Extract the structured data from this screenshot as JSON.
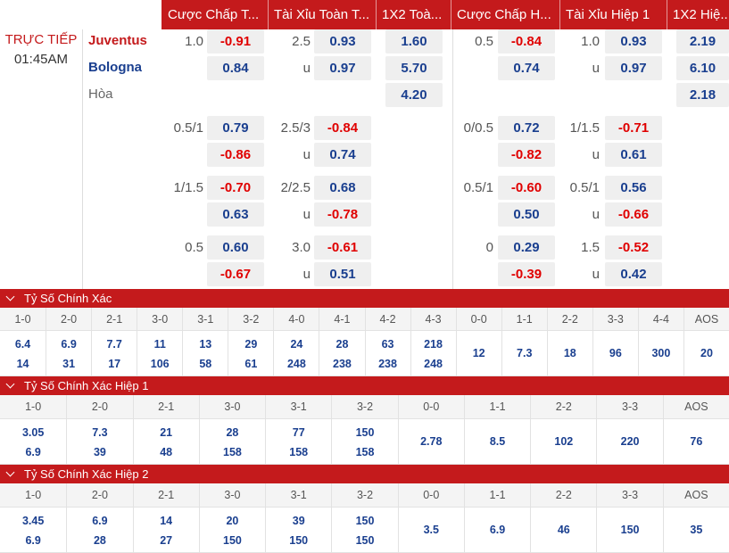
{
  "header": {
    "columns": [
      "Cược Chấp T...",
      "Tài Xỉu Toàn T...",
      "1X2 Toà...",
      "Cược Chấp H...",
      "Tài Xỉu Hiệp 1",
      "1X2 Hiệ..."
    ]
  },
  "match": {
    "status": "TRỰC TIẾP",
    "time": "01:45AM",
    "home": "Juventus",
    "away": "Bologna",
    "draw": "Hòa",
    "ou_under_label": "u",
    "main": {
      "ft_hdp": {
        "line": "1.0",
        "home": "-0.91",
        "away": "0.84"
      },
      "ft_ou": {
        "line": "2.5",
        "over": "0.93",
        "under": "0.97"
      },
      "ft_1x2": {
        "home": "1.60",
        "away": "5.70",
        "draw": "4.20"
      },
      "h1_hdp": {
        "line": "0.5",
        "home": "-0.84",
        "away": "0.74"
      },
      "h1_ou": {
        "line": "1.0",
        "over": "0.93",
        "under": "0.97"
      },
      "h1_1x2": {
        "home": "2.19",
        "away": "6.10",
        "draw": "2.18"
      }
    },
    "alt": [
      {
        "ft_hdp": {
          "line": "0.5/1",
          "home": "0.79",
          "away": "-0.86"
        },
        "ft_ou": {
          "line": "2.5/3",
          "over": "-0.84",
          "under": "0.74"
        },
        "h1_hdp": {
          "line": "0/0.5",
          "home": "0.72",
          "away": "-0.82"
        },
        "h1_ou": {
          "line": "1/1.5",
          "over": "-0.71",
          "under": "0.61"
        }
      },
      {
        "ft_hdp": {
          "line": "1/1.5",
          "home": "-0.70",
          "away": "0.63"
        },
        "ft_ou": {
          "line": "2/2.5",
          "over": "0.68",
          "under": "-0.78"
        },
        "h1_hdp": {
          "line": "0.5/1",
          "home": "-0.60",
          "away": "0.50"
        },
        "h1_ou": {
          "line": "0.5/1",
          "over": "0.56",
          "under": "-0.66"
        }
      },
      {
        "ft_hdp": {
          "line": "0.5",
          "home": "0.60",
          "away": "-0.67"
        },
        "ft_ou": {
          "line": "3.0",
          "over": "-0.61",
          "under": "0.51"
        },
        "h1_hdp": {
          "line": "0",
          "home": "0.29",
          "away": "-0.39"
        },
        "h1_ou": {
          "line": "1.5",
          "over": "-0.52",
          "under": "0.42"
        }
      }
    ]
  },
  "correct_score": {
    "title": "Tỷ Số Chính Xác",
    "columns": [
      {
        "score": "1-0",
        "home": "6.4",
        "away": "14"
      },
      {
        "score": "2-0",
        "home": "6.9",
        "away": "31"
      },
      {
        "score": "2-1",
        "home": "7.7",
        "away": "17"
      },
      {
        "score": "3-0",
        "home": "11",
        "away": "106"
      },
      {
        "score": "3-1",
        "home": "13",
        "away": "58"
      },
      {
        "score": "3-2",
        "home": "29",
        "away": "61"
      },
      {
        "score": "4-0",
        "home": "24",
        "away": "248"
      },
      {
        "score": "4-1",
        "home": "28",
        "away": "238"
      },
      {
        "score": "4-2",
        "home": "63",
        "away": "238"
      },
      {
        "score": "4-3",
        "home": "218",
        "away": "248"
      },
      {
        "score": "0-0",
        "single": "12"
      },
      {
        "score": "1-1",
        "single": "7.3"
      },
      {
        "score": "2-2",
        "single": "18"
      },
      {
        "score": "3-3",
        "single": "96"
      },
      {
        "score": "4-4",
        "single": "300"
      },
      {
        "score": "AOS",
        "single": "20"
      }
    ]
  },
  "correct_score_h1": {
    "title": "Tỷ Số Chính Xác Hiệp 1",
    "columns": [
      {
        "score": "1-0",
        "home": "3.05",
        "away": "6.9"
      },
      {
        "score": "2-0",
        "home": "7.3",
        "away": "39"
      },
      {
        "score": "2-1",
        "home": "21",
        "away": "48"
      },
      {
        "score": "3-0",
        "home": "28",
        "away": "158"
      },
      {
        "score": "3-1",
        "home": "77",
        "away": "158"
      },
      {
        "score": "3-2",
        "home": "150",
        "away": "158"
      },
      {
        "score": "0-0",
        "single": "2.78"
      },
      {
        "score": "1-1",
        "single": "8.5"
      },
      {
        "score": "2-2",
        "single": "102"
      },
      {
        "score": "3-3",
        "single": "220"
      },
      {
        "score": "AOS",
        "single": "76"
      }
    ]
  },
  "correct_score_h2": {
    "title": "Tỷ Số Chính Xác Hiệp 2",
    "columns": [
      {
        "score": "1-0",
        "home": "3.45",
        "away": "6.9"
      },
      {
        "score": "2-0",
        "home": "6.9",
        "away": "28"
      },
      {
        "score": "2-1",
        "home": "14",
        "away": "27"
      },
      {
        "score": "3-0",
        "home": "20",
        "away": "150"
      },
      {
        "score": "3-1",
        "home": "39",
        "away": "150"
      },
      {
        "score": "3-2",
        "home": "150",
        "away": "150"
      },
      {
        "score": "0-0",
        "single": "3.5"
      },
      {
        "score": "1-1",
        "single": "6.9"
      },
      {
        "score": "2-2",
        "single": "46"
      },
      {
        "score": "3-3",
        "single": "150"
      },
      {
        "score": "AOS",
        "single": "35"
      }
    ]
  }
}
